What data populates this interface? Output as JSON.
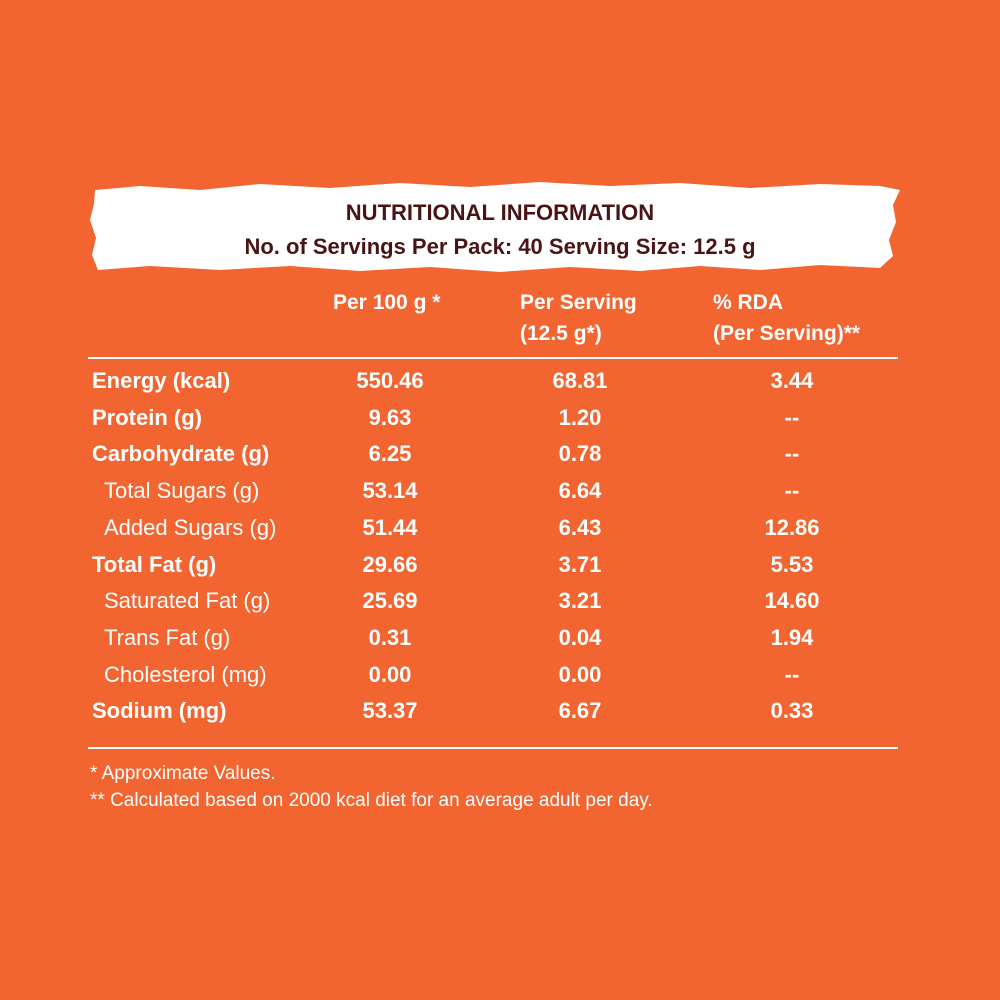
{
  "header": {
    "title": "NUTRITIONAL INFORMATION",
    "subtitle": "No. of Servings Per Pack: 40   Serving Size: 12.5 g"
  },
  "table": {
    "columns": [
      [
        "Per 100 g *"
      ],
      [
        "Per Serving",
        "(12.5 g*)"
      ],
      [
        "% RDA",
        "(Per Serving)**"
      ]
    ],
    "rows": [
      {
        "label": "Energy (kcal)",
        "sub": false,
        "values": [
          "550.46",
          "68.81",
          "3.44"
        ]
      },
      {
        "label": "Protein (g)",
        "sub": false,
        "values": [
          "9.63",
          "1.20",
          "--"
        ]
      },
      {
        "label": "Carbohydrate (g)",
        "sub": false,
        "values": [
          "6.25",
          "0.78",
          "--"
        ]
      },
      {
        "label": "Total Sugars (g)",
        "sub": true,
        "values": [
          "53.14",
          "6.64",
          "--"
        ]
      },
      {
        "label": "Added Sugars (g)",
        "sub": true,
        "values": [
          "51.44",
          "6.43",
          "12.86"
        ]
      },
      {
        "label": "Total Fat (g)",
        "sub": false,
        "values": [
          "29.66",
          "3.71",
          "5.53"
        ]
      },
      {
        "label": "Saturated Fat (g)",
        "sub": true,
        "values": [
          "25.69",
          "3.21",
          "14.60"
        ]
      },
      {
        "label": "Trans Fat (g)",
        "sub": true,
        "values": [
          "0.31",
          "0.04",
          "1.94"
        ]
      },
      {
        "label": "Cholesterol (mg)",
        "sub": true,
        "values": [
          "0.00",
          "0.00",
          "--"
        ]
      },
      {
        "label": "Sodium (mg)",
        "sub": false,
        "values": [
          "53.37",
          "6.67",
          "0.33"
        ]
      }
    ]
  },
  "footnotes": [
    "* Approximate Values.",
    "** Calculated based on 2000 kcal diet for an average adult per day."
  ]
}
